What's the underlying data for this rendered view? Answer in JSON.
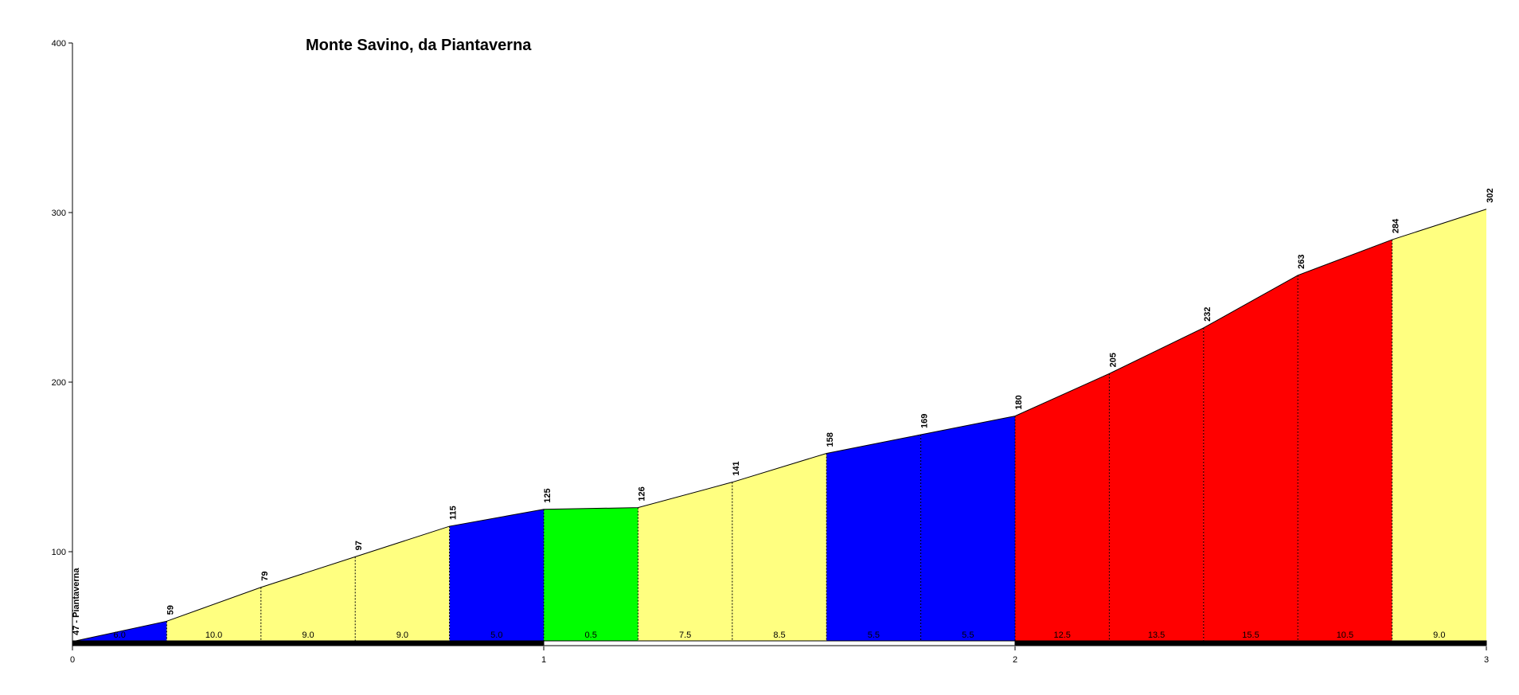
{
  "chart_data": {
    "type": "area",
    "title": "Monte Savino, da Piantaverna",
    "xlabel": "",
    "ylabel": "",
    "xlim": [
      0,
      3
    ],
    "ylim": [
      47,
      400
    ],
    "x_ticks": [
      0,
      1,
      2,
      3
    ],
    "x_tick_labels": [
      "0",
      "1",
      "2",
      "3"
    ],
    "y_ticks": [
      100,
      200,
      300,
      400
    ],
    "y_tick_labels": [
      "100",
      "200",
      "300",
      "400"
    ],
    "grid": false,
    "legend": "none",
    "points": [
      {
        "x": 0.0,
        "y": 47,
        "label": "47 - Piantaverna"
      },
      {
        "x": 0.2,
        "y": 59,
        "label": "59"
      },
      {
        "x": 0.4,
        "y": 79,
        "label": "79"
      },
      {
        "x": 0.6,
        "y": 97,
        "label": "97"
      },
      {
        "x": 0.8,
        "y": 115,
        "label": "115"
      },
      {
        "x": 1.0,
        "y": 125,
        "label": "125"
      },
      {
        "x": 1.2,
        "y": 126,
        "label": "126"
      },
      {
        "x": 1.4,
        "y": 141,
        "label": "141"
      },
      {
        "x": 1.6,
        "y": 158,
        "label": "158"
      },
      {
        "x": 1.8,
        "y": 169,
        "label": "169"
      },
      {
        "x": 2.0,
        "y": 180,
        "label": "180"
      },
      {
        "x": 2.2,
        "y": 205,
        "label": "205"
      },
      {
        "x": 2.4,
        "y": 232,
        "label": "232"
      },
      {
        "x": 2.6,
        "y": 263,
        "label": "263"
      },
      {
        "x": 2.8,
        "y": 284,
        "label": "284"
      },
      {
        "x": 3.0,
        "y": 302,
        "label": "302"
      }
    ],
    "segments": [
      {
        "x0": 0.0,
        "x1": 0.2,
        "grade": "6.0",
        "color": "#0000ff"
      },
      {
        "x0": 0.2,
        "x1": 0.4,
        "grade": "10.0",
        "color": "#ffff80"
      },
      {
        "x0": 0.4,
        "x1": 0.6,
        "grade": "9.0",
        "color": "#ffff80"
      },
      {
        "x0": 0.6,
        "x1": 0.8,
        "grade": "9.0",
        "color": "#ffff80"
      },
      {
        "x0": 0.8,
        "x1": 1.0,
        "grade": "5.0",
        "color": "#0000ff"
      },
      {
        "x0": 1.0,
        "x1": 1.2,
        "grade": "0.5",
        "color": "#00ff00"
      },
      {
        "x0": 1.2,
        "x1": 1.4,
        "grade": "7.5",
        "color": "#ffff80"
      },
      {
        "x0": 1.4,
        "x1": 1.6,
        "grade": "8.5",
        "color": "#ffff80"
      },
      {
        "x0": 1.6,
        "x1": 1.8,
        "grade": "5.5",
        "color": "#0000ff"
      },
      {
        "x0": 1.8,
        "x1": 2.0,
        "grade": "5.5",
        "color": "#0000ff"
      },
      {
        "x0": 2.0,
        "x1": 2.2,
        "grade": "12.5",
        "color": "#ff0000"
      },
      {
        "x0": 2.2,
        "x1": 2.4,
        "grade": "13.5",
        "color": "#ff0000"
      },
      {
        "x0": 2.4,
        "x1": 2.6,
        "grade": "15.5",
        "color": "#ff0000"
      },
      {
        "x0": 2.6,
        "x1": 2.8,
        "grade": "10.5",
        "color": "#ff0000"
      },
      {
        "x0": 2.8,
        "x1": 3.0,
        "grade": "9.0",
        "color": "#ffff80"
      }
    ],
    "km_bar": [
      {
        "x0": 0,
        "x1": 1,
        "color": "#000000"
      },
      {
        "x0": 1,
        "x1": 2,
        "color": "#ffffff"
      },
      {
        "x0": 2,
        "x1": 3,
        "color": "#000000"
      }
    ]
  }
}
